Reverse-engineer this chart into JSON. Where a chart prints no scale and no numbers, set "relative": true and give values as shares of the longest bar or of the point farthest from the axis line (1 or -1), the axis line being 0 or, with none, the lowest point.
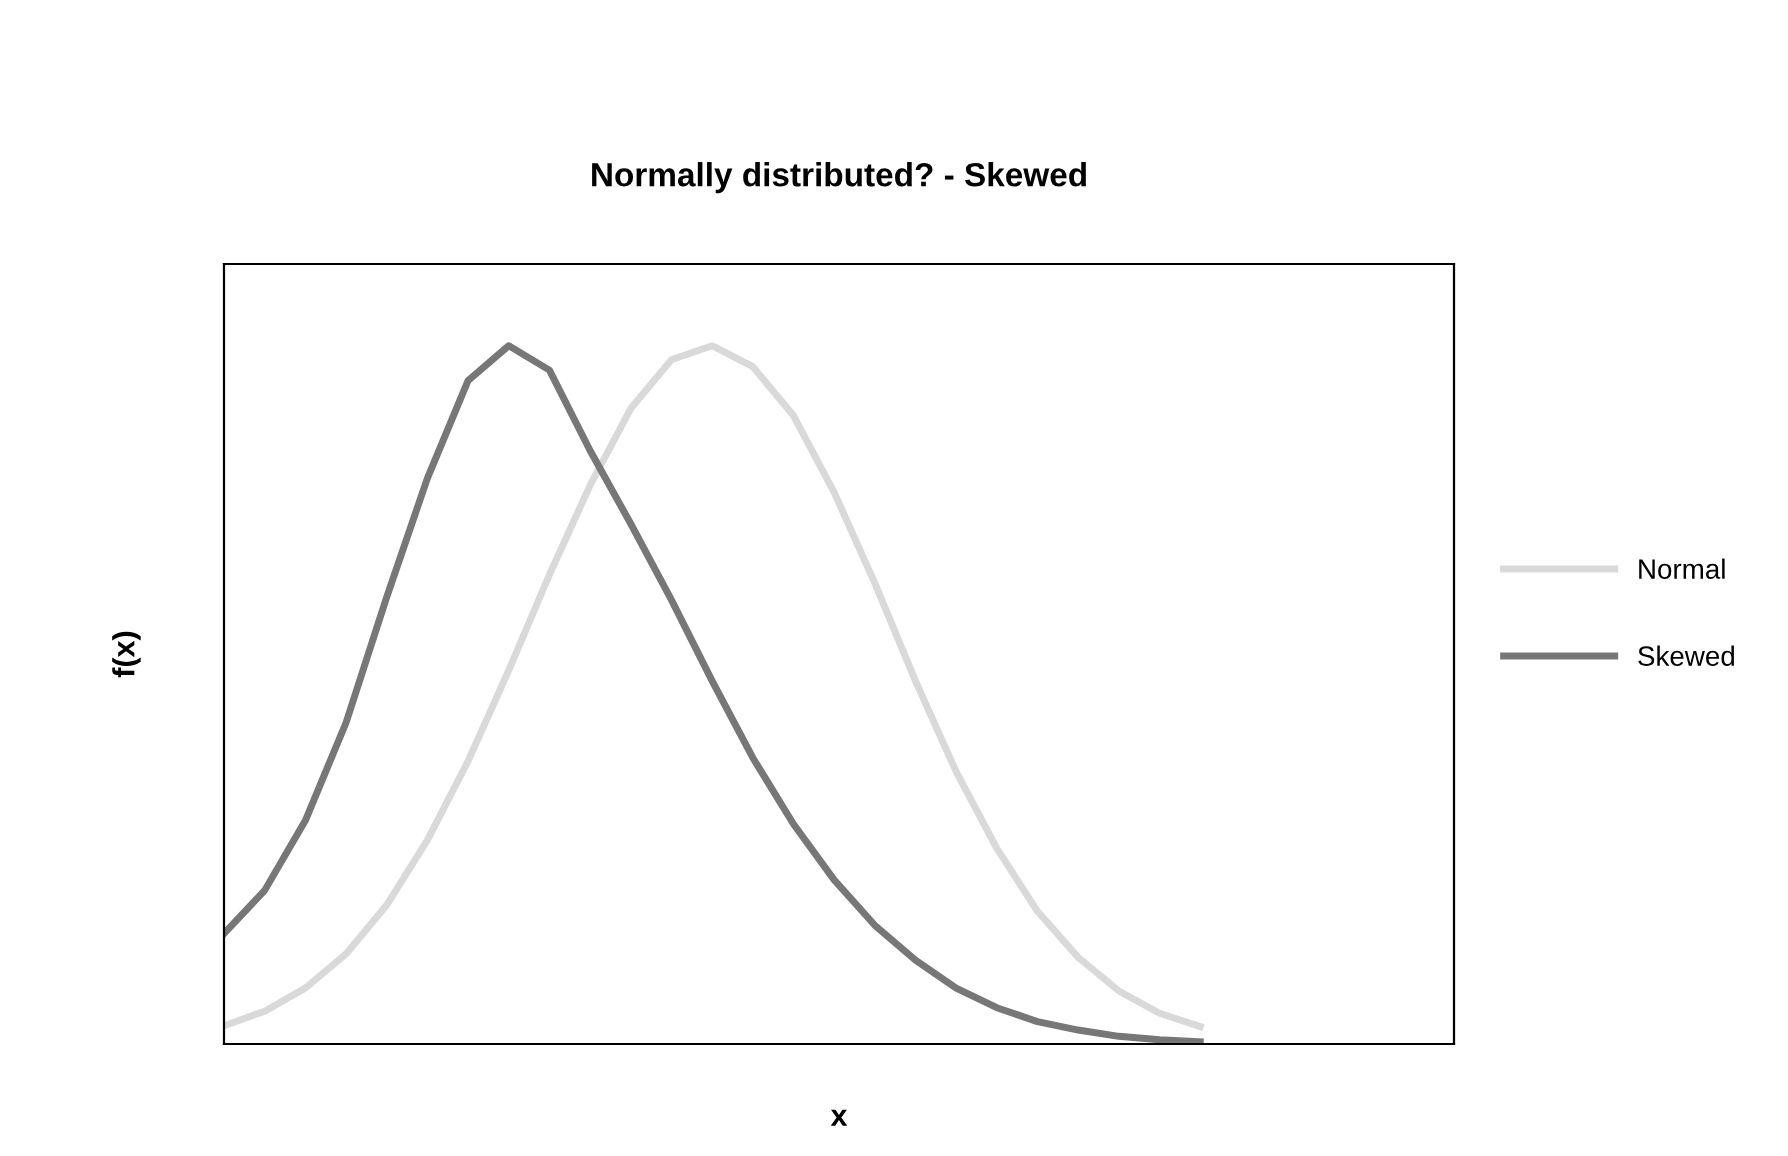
{
  "chart_data": {
    "type": "line",
    "title": "Normally distributed? - Skewed",
    "xlabel": "x",
    "ylabel": "f(x)",
    "relative": true,
    "legend": "right",
    "grid": false,
    "categories": [
      null,
      null,
      null,
      null,
      null,
      null,
      null,
      null,
      null,
      null,
      null,
      null,
      null,
      null,
      null,
      null,
      null,
      null,
      null,
      null,
      null,
      null,
      null,
      null,
      null
    ],
    "series": [
      {
        "name": "Normal",
        "color": "#d9d9d9",
        "values": [
          0.026,
          0.047,
          0.08,
          0.129,
          0.199,
          0.292,
          0.405,
          0.535,
          0.672,
          0.8,
          0.91,
          0.98,
          1.0,
          0.97,
          0.9,
          0.79,
          0.66,
          0.52,
          0.39,
          0.28,
          0.19,
          0.124,
          0.076,
          0.044,
          0.025
        ]
      },
      {
        "name": "Skewed",
        "color": "#777777",
        "values": [
          0.158,
          0.22,
          0.32,
          0.46,
          0.64,
          0.81,
          0.95,
          1.0,
          0.965,
          0.85,
          0.745,
          0.636,
          0.52,
          0.41,
          0.315,
          0.235,
          0.17,
          0.12,
          0.08,
          0.052,
          0.032,
          0.02,
          0.011,
          0.006,
          0.003
        ]
      }
    ]
  }
}
